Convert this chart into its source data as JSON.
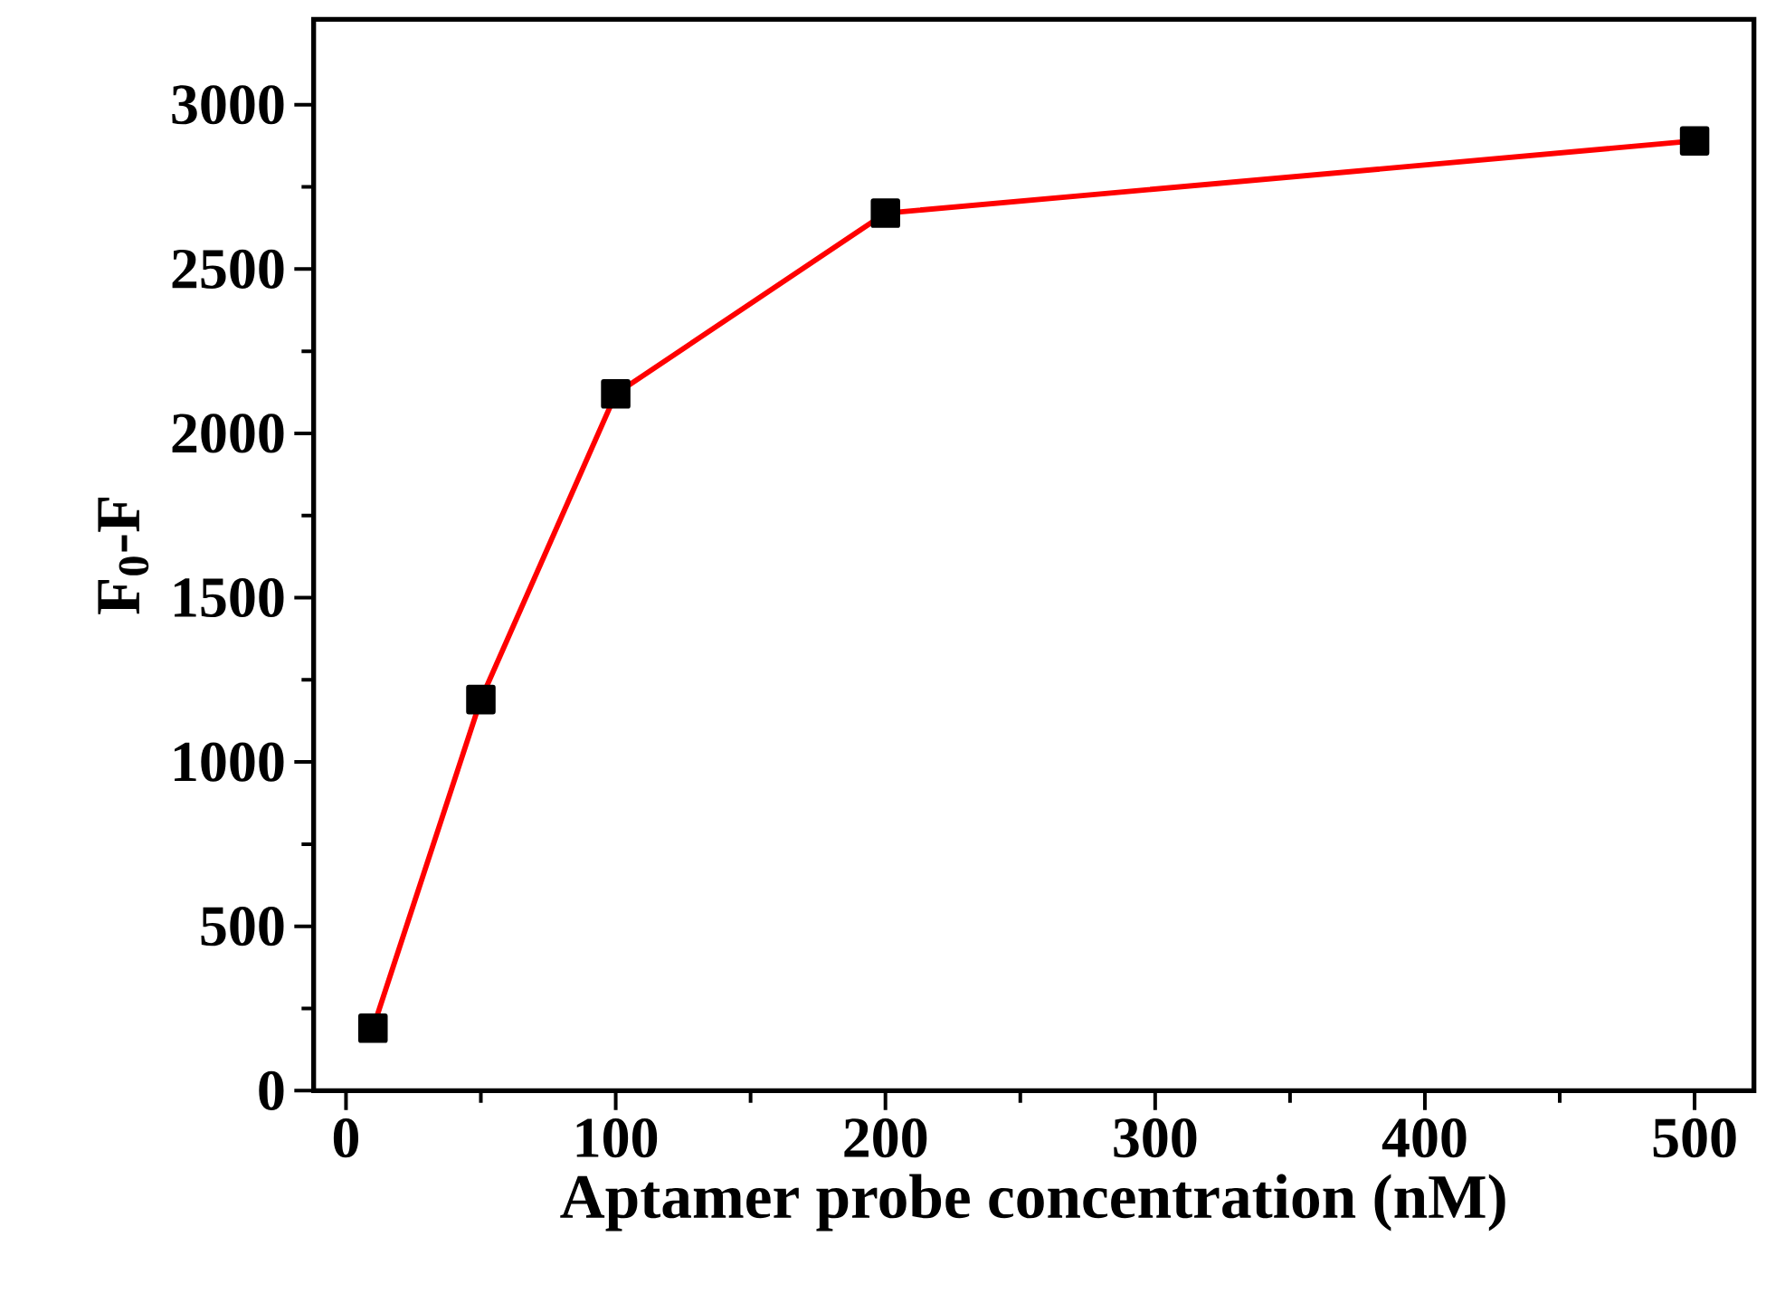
{
  "chart_data": {
    "type": "line",
    "xlabel": "Aptamer probe concentration (nM)",
    "ylabel": "F$_{0}$-F",
    "x": [
      10,
      50,
      100,
      200,
      500
    ],
    "series": [
      {
        "color": "#ff0000",
        "values": [
          190,
          1190,
          2120,
          2670,
          2890
        ]
      }
    ],
    "marker": "square",
    "line_style": "solid",
    "xlim": [
      -12,
      522
    ],
    "ylim": [
      0,
      3260
    ],
    "xticks": [
      0,
      100,
      200,
      300,
      400,
      500
    ],
    "yticks": [
      0,
      500,
      1000,
      1500,
      2000,
      2500,
      3000
    ]
  }
}
